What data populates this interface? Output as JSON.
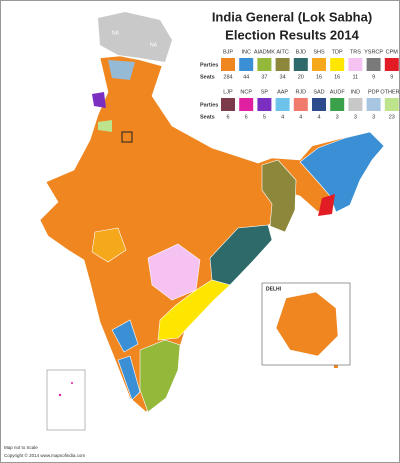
{
  "header": {
    "title_line1": "India General (Lok Sabha)",
    "title_line2": "Election Results 2014"
  },
  "legend": {
    "row_label_parties": "Parties",
    "row_label_seats": "Seats",
    "rows": [
      [
        {
          "party": "BJP",
          "seats": 284,
          "color": "#f0861f"
        },
        {
          "party": "INC",
          "seats": 44,
          "color": "#3b8fd4"
        },
        {
          "party": "AIADMK",
          "seats": 37,
          "color": "#94b83a"
        },
        {
          "party": "AITC",
          "seats": 34,
          "color": "#8c873a"
        },
        {
          "party": "BJD",
          "seats": 20,
          "color": "#2e6a6a"
        },
        {
          "party": "SHS",
          "seats": 16,
          "color": "#f5a81c"
        },
        {
          "party": "TDP",
          "seats": 16,
          "color": "#ffe600"
        },
        {
          "party": "TRS",
          "seats": 11,
          "color": "#f6c2f2"
        },
        {
          "party": "YSRCP",
          "seats": 9,
          "color": "#7a7a7a"
        },
        {
          "party": "CPM",
          "seats": 9,
          "color": "#e21c24"
        }
      ],
      [
        {
          "party": "LJP",
          "seats": 6,
          "color": "#7b3b4b"
        },
        {
          "party": "NCP",
          "seats": 6,
          "color": "#e020a0"
        },
        {
          "party": "SP",
          "seats": 5,
          "color": "#7b2fc0"
        },
        {
          "party": "AAP",
          "seats": 4,
          "color": "#6ec3ea"
        },
        {
          "party": "RJD",
          "seats": 4,
          "color": "#f07a6c"
        },
        {
          "party": "SAD",
          "seats": 4,
          "color": "#2c4a8c"
        },
        {
          "party": "AUDF",
          "seats": 3,
          "color": "#3aa04a"
        },
        {
          "party": "IND",
          "seats": 3,
          "color": "#c8c8c8"
        },
        {
          "party": "PDP",
          "seats": 3,
          "color": "#a8c6e2"
        },
        {
          "party": "OTHERS",
          "seats": 23,
          "color": "#bde38c"
        }
      ]
    ]
  },
  "map_labels": {
    "na_1": "NA",
    "na_2": "NA",
    "delhi": "DELHI"
  },
  "footer": {
    "scale_note": "Map not to Scale",
    "copyright": "Copyright © 2014 www.mapsofindia.com"
  }
}
